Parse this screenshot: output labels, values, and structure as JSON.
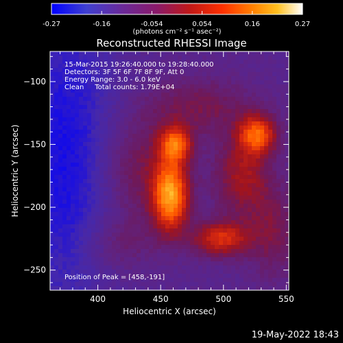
{
  "colorbar": {
    "tick_labels": [
      "-0.27",
      "-0.16",
      "-0.054",
      "0.054",
      "0.16",
      "0.27"
    ],
    "range": [
      -0.27,
      0.27
    ],
    "unit_label": "(photons cm⁻² s⁻¹ asec⁻²)"
  },
  "image": {
    "title": "Reconstructed RHESSI Image",
    "info_lines": [
      "15-Mar-2015 19:26:40.000 to 19:28:40.000",
      "Detectors: 3F 5F 6F 7F 8F 9F, Att 0",
      "Energy Range: 3.0 - 6.0 keV",
      "Clean     Total counts: 1.79E+04"
    ],
    "peak_label": "Position of Peak = [458,-191]"
  },
  "chart_data": {
    "type": "heatmap",
    "title": "Reconstructed RHESSI Image",
    "xlabel": "Heliocentric X (arcsec)",
    "ylabel": "Heliocentric Y (arcsec)",
    "xlim": [
      362,
      552
    ],
    "ylim": [
      -266,
      -76
    ],
    "xticks": [
      400,
      450,
      500,
      550
    ],
    "yticks": [
      -100,
      -150,
      -200,
      -250
    ],
    "x_tick_labels": [
      "400",
      "450",
      "500",
      "550"
    ],
    "y_tick_labels": [
      "−100",
      "−150",
      "−200",
      "−250"
    ],
    "value_range": [
      -0.27,
      0.27
    ],
    "colormap": [
      "#0000ff",
      "#5a1e8c",
      "#4a1a6e",
      "#6a1a5a",
      "#b01a1a",
      "#e03a10",
      "#ff6a00",
      "#ffa020",
      "#ffe060",
      "#ffffff"
    ],
    "peak": [
      458,
      -191
    ],
    "sources": [
      {
        "x": 458,
        "y": -191,
        "amp": 0.27,
        "sx": 10,
        "sy": 20
      },
      {
        "x": 462,
        "y": -150,
        "amp": 0.2,
        "sx": 9,
        "sy": 10
      },
      {
        "x": 527,
        "y": -142,
        "amp": 0.2,
        "sx": 11,
        "sy": 11
      },
      {
        "x": 498,
        "y": -225,
        "amp": 0.17,
        "sx": 16,
        "sy": 10
      },
      {
        "x": 515,
        "y": -175,
        "amp": 0.12,
        "sx": 16,
        "sy": 22
      },
      {
        "x": 430,
        "y": -170,
        "amp": 0.09,
        "sx": 22,
        "sy": 30
      },
      {
        "x": 480,
        "y": -120,
        "amp": 0.08,
        "sx": 30,
        "sy": 16
      },
      {
        "x": 540,
        "y": -220,
        "amp": 0.08,
        "sx": 15,
        "sy": 25
      },
      {
        "x": 415,
        "y": -230,
        "amp": 0.06,
        "sx": 20,
        "sy": 16
      }
    ],
    "background": -0.12,
    "low_region": {
      "x": 375,
      "y": -160,
      "amp": -0.12,
      "sx": 30,
      "sy": 90
    }
  },
  "footer": {
    "timestamp": "19-May-2022 18:43"
  }
}
